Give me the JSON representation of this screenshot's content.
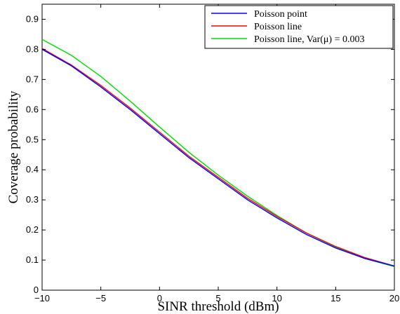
{
  "chart_data": {
    "type": "line",
    "title": "",
    "xlabel": "SINR threshold (dBm)",
    "ylabel": "Coverage probability",
    "xlim": [
      -10,
      20
    ],
    "ylim": [
      0,
      0.95
    ],
    "xticks": [
      -10,
      -5,
      0,
      5,
      10,
      15,
      20
    ],
    "yticks": [
      0,
      0.1,
      0.2,
      0.3,
      0.4,
      0.5,
      0.6,
      0.7,
      0.8,
      0.9
    ],
    "xtick_labels": [
      "−10",
      "−5",
      "0",
      "5",
      "10",
      "15",
      "20"
    ],
    "ytick_labels": [
      "0",
      "0.1",
      "0.2",
      "0.3",
      "0.4",
      "0.5",
      "0.6",
      "0.7",
      "0.8",
      "0.9"
    ],
    "grid": false,
    "legend_position": "top-right",
    "x": [
      -10,
      -7.5,
      -5,
      -2.5,
      0,
      2.5,
      5,
      7.5,
      10,
      12.5,
      15,
      17.5,
      20
    ],
    "series": [
      {
        "name": "Poisson point",
        "color": "#0000ff",
        "values": [
          0.8,
          0.745,
          0.675,
          0.6,
          0.52,
          0.44,
          0.37,
          0.3,
          0.24,
          0.185,
          0.14,
          0.105,
          0.08
        ]
      },
      {
        "name": "Poisson line",
        "color": "#ff0000",
        "values": [
          0.803,
          0.748,
          0.68,
          0.605,
          0.525,
          0.445,
          0.375,
          0.305,
          0.245,
          0.19,
          0.145,
          0.108,
          0.08
        ]
      },
      {
        "name": "Poisson line, Var(μ) = 0.003",
        "color": "#00dd00",
        "values": [
          0.833,
          0.78,
          0.71,
          0.628,
          0.542,
          0.458,
          0.382,
          0.312,
          0.248,
          0.19,
          0.143,
          0.105,
          0.078
        ]
      }
    ]
  }
}
